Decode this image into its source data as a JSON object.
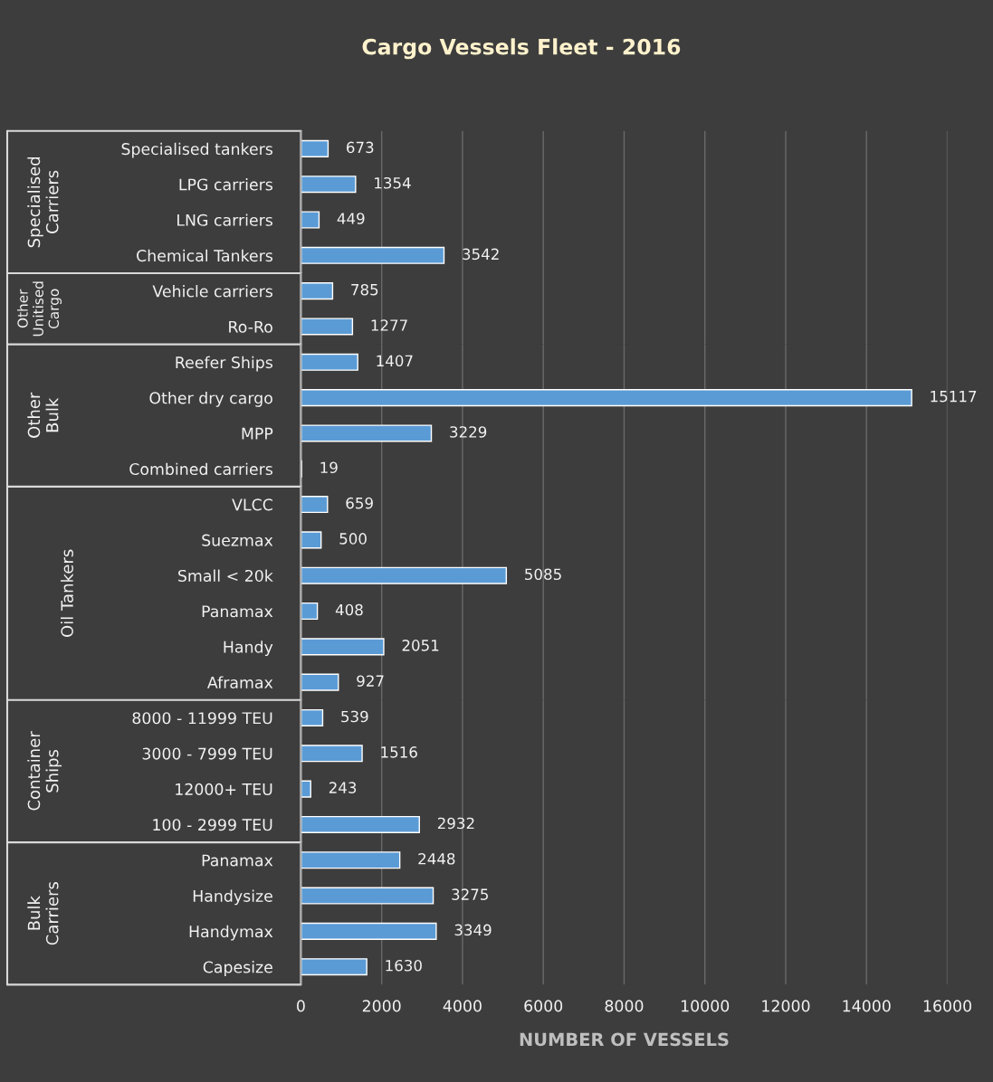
{
  "chart_data": [
    {
      "type": "bar",
      "orientation": "horizontal",
      "title": "Cargo Vessels Fleet - 2016",
      "ylabel": "Specialised Carriers",
      "categories": [
        "Specialised tankers",
        "LPG carriers",
        "LNG carriers",
        "Chemical Tankers"
      ],
      "values": [
        673,
        1354,
        449,
        3542
      ],
      "color": "#5b9bd5",
      "data_labels": true,
      "xlim": [
        0,
        16000
      ],
      "xticks": [
        0,
        2000,
        4000,
        6000,
        8000,
        10000,
        12000,
        14000,
        16000
      ],
      "grid": "x",
      "tick_labels": "y"
    },
    {
      "type": "bar",
      "orientation": "horizontal",
      "ylabel": "Other Unitised Cargo",
      "categories": [
        "Vehicle carriers",
        "Ro-Ro"
      ],
      "values": [
        785,
        1277
      ],
      "color": "#5b9bd5",
      "data_labels": true,
      "xlim": [
        0,
        16000
      ],
      "xticks": [
        0,
        2000,
        4000,
        6000,
        8000,
        10000,
        12000,
        14000,
        16000
      ],
      "grid": "x",
      "tick_labels": "y"
    },
    {
      "type": "bar",
      "orientation": "horizontal",
      "ylabel": "Other Bulk",
      "categories": [
        "Reefer Ships",
        "Other dry cargo",
        "MPP",
        "Combined carriers"
      ],
      "values": [
        1407,
        15117,
        3229,
        19
      ],
      "color": "#5b9bd5",
      "data_labels": true,
      "xlim": [
        0,
        16000
      ],
      "xticks": [
        0,
        2000,
        4000,
        6000,
        8000,
        10000,
        12000,
        14000,
        16000
      ],
      "grid": "x",
      "tick_labels": "y"
    },
    {
      "type": "bar",
      "orientation": "horizontal",
      "ylabel": "Oil Tankers",
      "categories": [
        "VLCC",
        "Suezmax",
        "Small < 20k",
        "Panamax",
        "Handy",
        "Aframax"
      ],
      "values": [
        659,
        500,
        5085,
        408,
        2051,
        927
      ],
      "color": "#5b9bd5",
      "data_labels": true,
      "xlim": [
        0,
        16000
      ],
      "xticks": [
        0,
        2000,
        4000,
        6000,
        8000,
        10000,
        12000,
        14000,
        16000
      ],
      "grid": "x",
      "tick_labels": "y"
    },
    {
      "type": "bar",
      "orientation": "horizontal",
      "ylabel": "Container Ships",
      "categories": [
        "8000 - 11999 TEU",
        "3000 - 7999 TEU",
        "12000+ TEU",
        "100 - 2999 TEU"
      ],
      "values": [
        539,
        1516,
        243,
        2932
      ],
      "color": "#5b9bd5",
      "data_labels": true,
      "xlim": [
        0,
        16000
      ],
      "xticks": [
        0,
        2000,
        4000,
        6000,
        8000,
        10000,
        12000,
        14000,
        16000
      ],
      "grid": "x",
      "tick_labels": "y"
    },
    {
      "type": "bar",
      "orientation": "horizontal",
      "ylabel": "Bulk Carriers",
      "xlabel": "NUMBER OF VESSELS",
      "categories": [
        "Panamax",
        "Handysize",
        "Handymax",
        "Capesize"
      ],
      "values": [
        2448,
        3275,
        3349,
        1630
      ],
      "color": "#5b9bd5",
      "data_labels": true,
      "xlim": [
        0,
        16000
      ],
      "xticks": [
        0,
        2000,
        4000,
        6000,
        8000,
        10000,
        12000,
        14000,
        16000
      ],
      "grid": "x"
    }
  ]
}
